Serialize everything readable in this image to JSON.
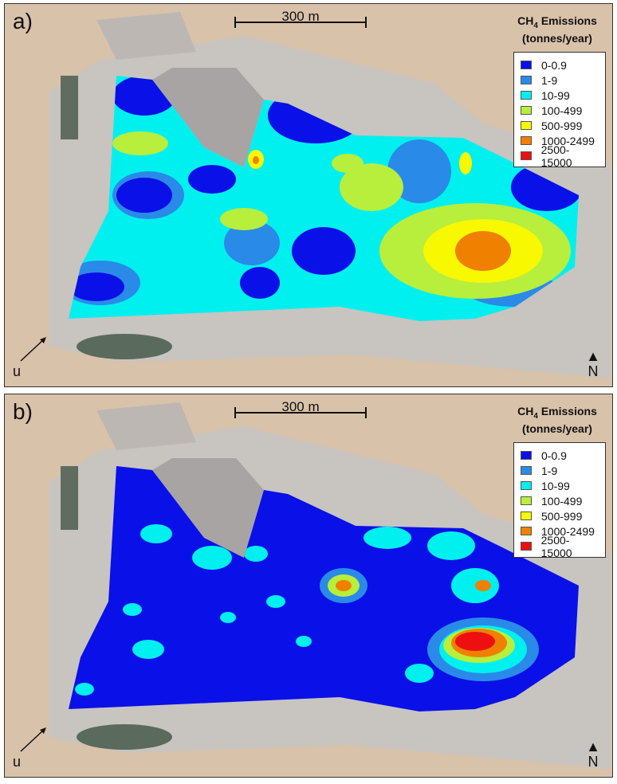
{
  "scale_label": "300 m",
  "legend": {
    "title_main": "CH",
    "title_sub": "4",
    "title_rest": " Emissions",
    "units": "(tonnes/year)",
    "items": [
      {
        "label": "0-0.9",
        "color": "#0a10e8"
      },
      {
        "label": "1-9",
        "color": "#2a8ae8"
      },
      {
        "label": "10-99",
        "color": "#00f0f0"
      },
      {
        "label": "100-499",
        "color": "#b8ee3c"
      },
      {
        "label": "500-999",
        "color": "#f8f800"
      },
      {
        "label": "1000-2499",
        "color": "#f08000"
      },
      {
        "label": "2500-15000",
        "color": "#ee1010"
      }
    ]
  },
  "north_label": "N",
  "wind_label": "u",
  "panels": [
    {
      "label": "a)"
    },
    {
      "label": "b)"
    }
  ]
}
